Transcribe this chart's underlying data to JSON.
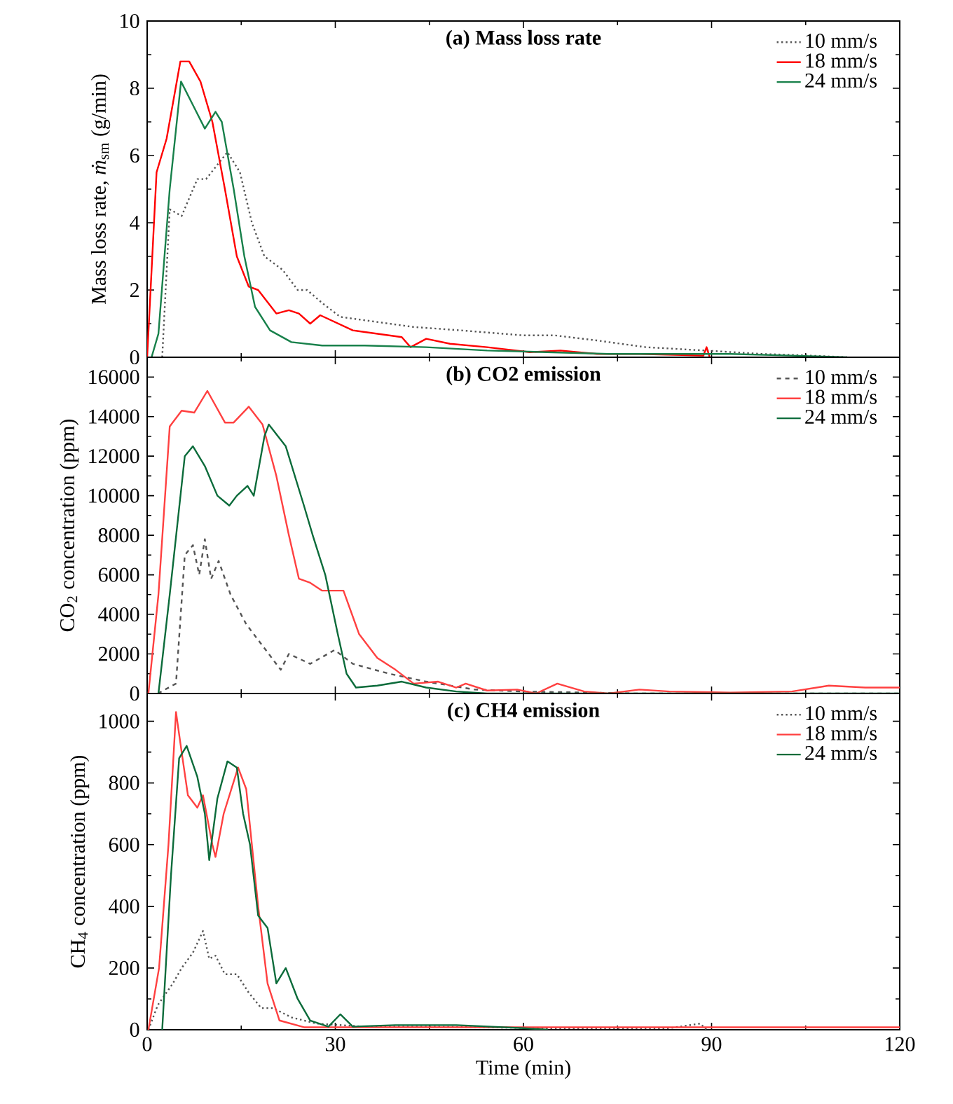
{
  "chart_data": [
    {
      "type": "line",
      "title": "(a) Mass loss rate",
      "ylabel": "Mass loss rate, *ṁ*$_{sm}$ (g/min)",
      "xlim": [
        0,
        120
      ],
      "ylim": [
        0,
        10
      ],
      "xticks": [
        0,
        30,
        60,
        90,
        120
      ],
      "yticks": [
        0,
        2,
        4,
        6,
        8,
        10
      ],
      "tick_labels": "y",
      "legend": "top right",
      "series": [
        {
          "name": "10 mm/s",
          "color": "#555555",
          "line_style": "dotted",
          "x": [
            2.4,
            3.6,
            5.5,
            8,
            9.4,
            12.8,
            14.8,
            16.7,
            18.7,
            21.6,
            24,
            25.5,
            28,
            30.8,
            34.7,
            42.5,
            50,
            60,
            65,
            71.7,
            79.5,
            89,
            98,
            105.7,
            111.6
          ],
          "values": [
            0,
            4.4,
            4.2,
            5.3,
            5.3,
            6.1,
            5.5,
            4,
            3,
            2.6,
            2.0,
            2.0,
            1.6,
            1.2,
            1.1,
            0.9,
            0.8,
            0.65,
            0.65,
            0.5,
            0.3,
            0.2,
            0.1,
            0.05,
            0
          ]
        },
        {
          "name": "18 mm/s",
          "color": "#ff0000",
          "line_style": "solid",
          "x": [
            0,
            1.5,
            3.1,
            5.3,
            6.7,
            8.5,
            10.4,
            12.4,
            14.3,
            16.2,
            17.7,
            20.6,
            22.6,
            24.2,
            26,
            27.6,
            32.8,
            40.6,
            42,
            44.5,
            48.3,
            54.2,
            61,
            65.9,
            71.7,
            78.5,
            88.7,
            89.2,
            89.7
          ],
          "values": [
            0,
            5.5,
            6.5,
            8.8,
            8.8,
            8.2,
            7,
            5,
            3,
            2.1,
            2.0,
            1.3,
            1.4,
            1.3,
            1.0,
            1.25,
            0.8,
            0.6,
            0.3,
            0.55,
            0.4,
            0.3,
            0.15,
            0.2,
            0.1,
            0.1,
            0.05,
            0.3,
            0
          ]
        },
        {
          "name": "24 mm/s",
          "color": "#17804a",
          "line_style": "solid",
          "x": [
            0.7,
            1.8,
            3.6,
            5.4,
            7.3,
            9.2,
            10.9,
            11.9,
            13.8,
            15.5,
            17.2,
            19.6,
            23,
            27.9,
            34.7,
            44.5,
            54.2,
            63.9,
            73.6,
            83.3,
            93,
            102.8,
            111.6
          ],
          "values": [
            0,
            0.7,
            5,
            8.2,
            7.5,
            6.8,
            7.3,
            7.0,
            5,
            3,
            1.5,
            0.8,
            0.45,
            0.35,
            0.35,
            0.3,
            0.2,
            0.15,
            0.1,
            0.1,
            0.1,
            0.05,
            0
          ]
        }
      ]
    },
    {
      "type": "line",
      "title": "(b) CO2 emission",
      "ylabel": "CO$_{2}$ concentration (ppm)",
      "xlim": [
        0,
        120
      ],
      "ylim": [
        0,
        17000
      ],
      "xticks": [
        0,
        30,
        60,
        90,
        120
      ],
      "yticks": [
        0,
        2000,
        4000,
        6000,
        8000,
        10000,
        12000,
        14000,
        16000
      ],
      "tick_labels": "y",
      "legend": "top right",
      "series": [
        {
          "name": "10 mm/s",
          "color": "#555555",
          "line_style": "dashed",
          "x": [
            1.7,
            4.6,
            6,
            7.3,
            8.3,
            9.2,
            10.2,
            11.4,
            13.3,
            15.8,
            18.2,
            21.3,
            22.6,
            26,
            29.9,
            32.8,
            38.6,
            44.5,
            52.2,
            60,
            69.7,
            78.5,
            120
          ],
          "values": [
            0,
            500,
            7000,
            7500,
            6000,
            7800,
            5800,
            6700,
            5000,
            3500,
            2500,
            1200,
            2000,
            1500,
            2200,
            1500,
            1000,
            600,
            200,
            100,
            50,
            0,
            0
          ]
        },
        {
          "name": "18 mm/s",
          "color": "#ff4040",
          "line_style": "solid",
          "x": [
            0.2,
            1.8,
            3.6,
            5.5,
            7.5,
            9.6,
            12.4,
            13.8,
            16.2,
            18.4,
            20.6,
            22.6,
            24.2,
            26,
            27.9,
            31.3,
            33.8,
            36.7,
            39.6,
            42.5,
            46.4,
            49.3,
            50.8,
            54.2,
            59,
            62,
            65.4,
            69.7,
            73.6,
            78.5,
            83.3,
            93,
            102.8,
            108.7,
            114.5,
            120
          ],
          "values": [
            0,
            5000,
            13500,
            14300,
            14200,
            15300,
            13700,
            13700,
            14500,
            13600,
            11000,
            8000,
            5800,
            5600,
            5200,
            5200,
            3000,
            1800,
            1200,
            500,
            600,
            300,
            500,
            150,
            200,
            0,
            500,
            100,
            0,
            200,
            100,
            50,
            100,
            400,
            300,
            300
          ]
        },
        {
          "name": "24 mm/s",
          "color": "#0b6b3a",
          "line_style": "solid",
          "x": [
            1.8,
            3.6,
            6,
            7.3,
            9.2,
            11.2,
            13.1,
            14.3,
            16,
            17,
            18.7,
            19.4,
            22.1,
            25,
            26.4,
            28.4,
            30.4,
            31.8,
            33.3,
            36.7,
            40.6,
            44.5,
            49.3,
            54.2,
            120
          ],
          "values": [
            0,
            5000,
            12000,
            12500,
            11500,
            10000,
            9500,
            10000,
            10500,
            10000,
            13000,
            13600,
            12500,
            9500,
            8000,
            6000,
            3000,
            1000,
            300,
            400,
            600,
            300,
            100,
            0,
            0
          ]
        }
      ]
    },
    {
      "type": "line",
      "title": "(c) CH4 emission",
      "xlabel": "Time (min)",
      "ylabel": "CH$_{4}$ concentration (ppm)",
      "xlim": [
        0,
        120
      ],
      "ylim": [
        0,
        1090
      ],
      "xticks": [
        0,
        30,
        60,
        90,
        120
      ],
      "yticks": [
        0,
        200,
        400,
        600,
        800,
        1000
      ],
      "legend": "top right",
      "series": [
        {
          "name": "10 mm/s",
          "color": "#555555",
          "line_style": "dotted",
          "x": [
            0.2,
            1.7,
            4.1,
            5.5,
            7.3,
            8.9,
            9.9,
            10.9,
            12.4,
            14.3,
            16.2,
            18.2,
            20.1,
            23,
            27,
            34.7,
            44.5,
            63.9,
            83.3,
            88.2,
            89.2
          ],
          "values": [
            0,
            80,
            150,
            200,
            250,
            320,
            230,
            240,
            180,
            180,
            120,
            70,
            70,
            40,
            20,
            10,
            10,
            5,
            5,
            20,
            0
          ]
        },
        {
          "name": "18 mm/s",
          "color": "#ff4040",
          "line_style": "solid",
          "x": [
            0.2,
            1.9,
            3.4,
            4.6,
            5.5,
            6.5,
            8,
            8.9,
            10.4,
            10.9,
            12.2,
            14.5,
            15.8,
            17.7,
            19.2,
            21.1,
            25,
            120
          ],
          "values": [
            0,
            200,
            600,
            1030,
            900,
            760,
            720,
            760,
            600,
            560,
            700,
            850,
            780,
            400,
            150,
            30,
            8,
            8
          ]
        },
        {
          "name": "24 mm/s",
          "color": "#0b6b3a",
          "line_style": "solid",
          "x": [
            2.4,
            3.8,
            5.1,
            6.3,
            8,
            9.2,
            9.9,
            11.2,
            12.8,
            14.3,
            15.3,
            16.4,
            17.7,
            19.2,
            20.6,
            22.1,
            24,
            26,
            28.9,
            30.8,
            32.8,
            39.6,
            49.3,
            60,
            63.9
          ],
          "values": [
            0,
            500,
            880,
            920,
            820,
            700,
            550,
            750,
            870,
            850,
            700,
            600,
            370,
            330,
            150,
            200,
            100,
            30,
            10,
            50,
            10,
            15,
            15,
            5,
            0
          ]
        }
      ]
    }
  ]
}
